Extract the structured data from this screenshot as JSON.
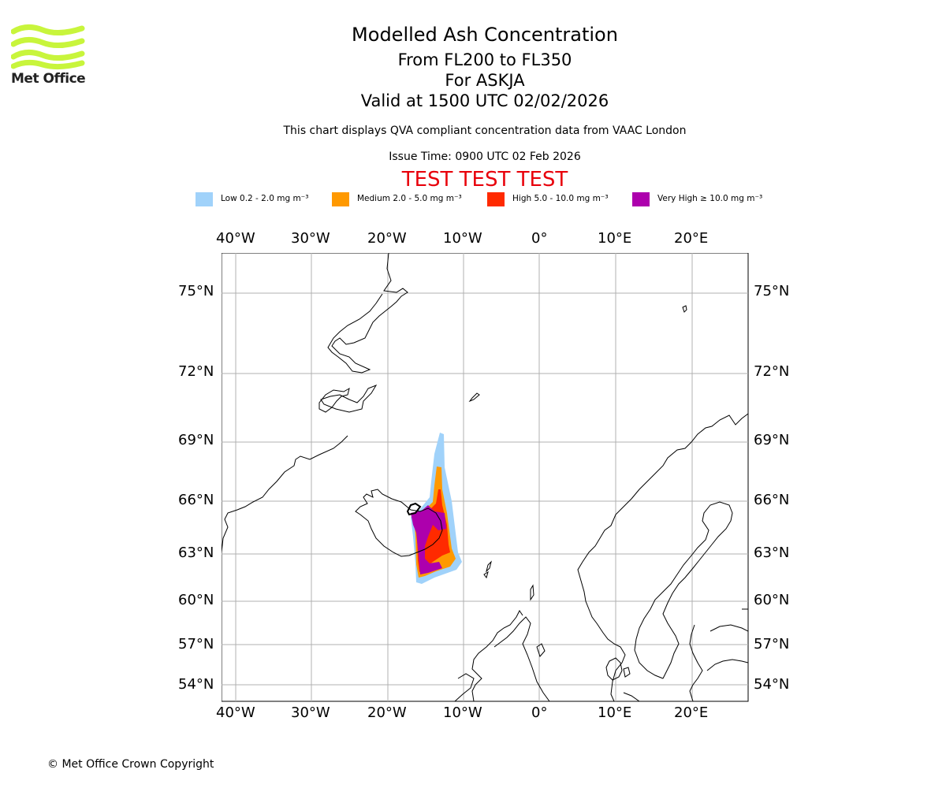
{
  "header": {
    "title": "Modelled Ash Concentration",
    "levels": "From FL200 to FL350",
    "volcano": "For ASKJA",
    "valid": "Valid at 1500 UTC 02/02/2026",
    "qva_note": "This chart displays QVA compliant concentration data from VAAC London",
    "issue_time": "Issue Time: 0900 UTC 02 Feb 2026",
    "test_banner": "TEST TEST TEST"
  },
  "logo": {
    "name": "Met Office"
  },
  "legend": [
    {
      "label": "Low 0.2 - 2.0 mg m⁻³",
      "color": "#a0d2fa"
    },
    {
      "label": "Medium 2.0 - 5.0 mg m⁻³",
      "color": "#ff9900"
    },
    {
      "label": "High 5.0 - 10.0 mg m⁻³",
      "color": "#ff2a00"
    },
    {
      "label": "Very High ≥ 10.0 mg m⁻³",
      "color": "#ad00ad"
    }
  ],
  "axes": {
    "lon_ticks": [
      "40°W",
      "30°W",
      "20°W",
      "10°W",
      "0°",
      "10°E",
      "20°E"
    ],
    "lat_ticks": [
      "75°N",
      "72°N",
      "69°N",
      "66°N",
      "63°N",
      "60°N",
      "57°N",
      "54°N"
    ]
  },
  "footer": {
    "copyright": "© Met Office Crown Copyright"
  }
}
